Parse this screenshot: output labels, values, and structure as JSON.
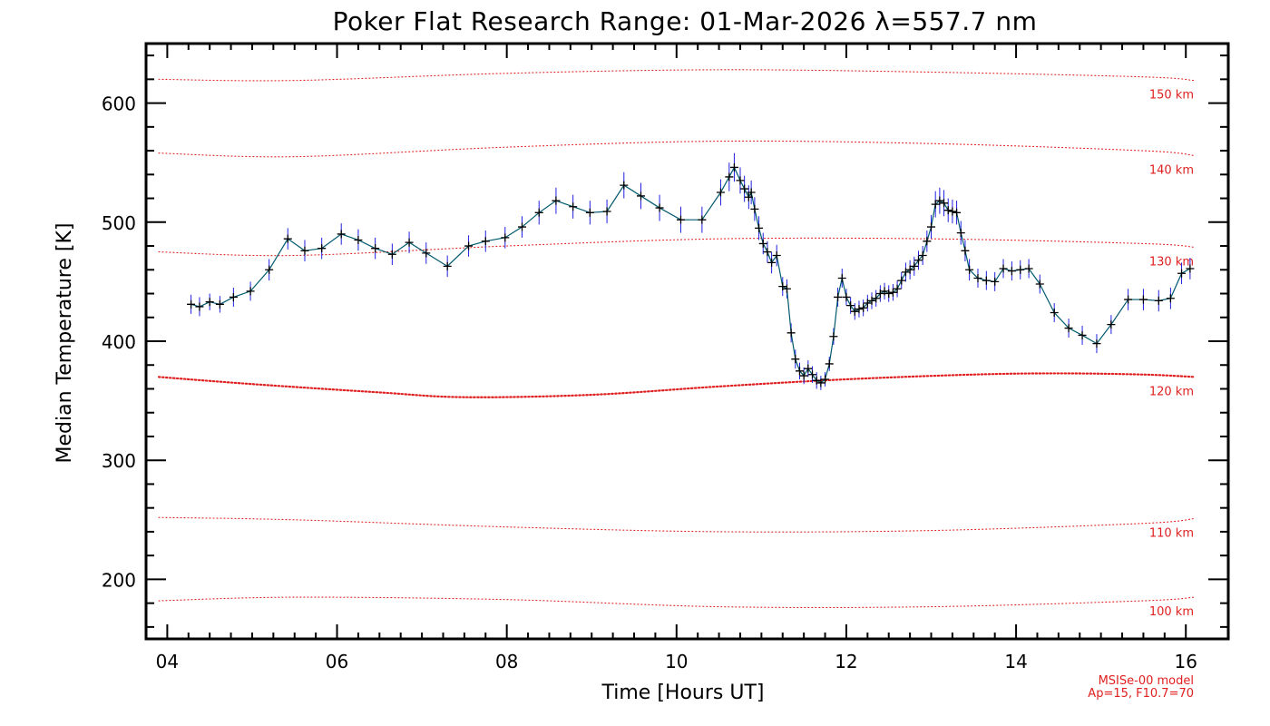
{
  "chart_data": {
    "type": "line",
    "title": "Poker Flat Research Range: 01-Mar-2026 λ=557.7 nm",
    "xlabel": "Time [Hours UT]",
    "ylabel": "Median Temperature [K]",
    "xlim": [
      3.75,
      16.5
    ],
    "ylim": [
      150,
      650
    ],
    "x_ticks": [
      4,
      6,
      8,
      10,
      12,
      14,
      16
    ],
    "x_tick_labels": [
      "04",
      "06",
      "08",
      "10",
      "12",
      "14",
      "16"
    ],
    "y_ticks": [
      200,
      300,
      400,
      500,
      600
    ],
    "y_tick_labels": [
      "200",
      "300",
      "400",
      "500",
      "600"
    ],
    "model_note": [
      "MSISe-00 model",
      "Ap=15, F10.7=70"
    ],
    "model_curves": [
      {
        "label": "150 km",
        "x": [
          3.9,
          5.5,
          8.0,
          10.5,
          13.0,
          15.5,
          16.1
        ],
        "y": [
          620,
          619,
          625,
          628,
          626,
          622,
          619
        ]
      },
      {
        "label": "140 km",
        "x": [
          3.9,
          5.5,
          8.0,
          10.5,
          13.0,
          15.5,
          16.1
        ],
        "y": [
          558,
          555,
          563,
          568,
          566,
          560,
          556
        ]
      },
      {
        "label": "130 km",
        "x": [
          3.9,
          5.5,
          8.0,
          10.5,
          13.0,
          15.5,
          16.1
        ],
        "y": [
          475,
          472,
          480,
          486,
          486,
          482,
          479
        ]
      },
      {
        "label": "120 km",
        "x": [
          3.9,
          5.0,
          6.5,
          7.5,
          9.0,
          10.5,
          12.0,
          13.5,
          14.5,
          15.5,
          16.1
        ],
        "y": [
          370,
          364,
          357,
          353,
          355,
          362,
          368,
          372,
          373,
          372,
          370
        ]
      },
      {
        "label": "110 km",
        "x": [
          3.9,
          5.5,
          8.0,
          10.5,
          13.0,
          15.5,
          16.1
        ],
        "y": [
          252,
          250,
          244,
          240,
          241,
          247,
          251
        ]
      },
      {
        "label": "100 km",
        "x": [
          3.9,
          5.5,
          8.0,
          10.5,
          13.0,
          15.5,
          16.1
        ],
        "y": [
          182,
          185,
          183,
          177,
          177,
          182,
          185
        ]
      }
    ],
    "series": [
      {
        "name": "Median Temperature",
        "points": [
          [
            4.28,
            431,
            8
          ],
          [
            4.38,
            429,
            8
          ],
          [
            4.5,
            433,
            7
          ],
          [
            4.62,
            431,
            7
          ],
          [
            4.78,
            437,
            8
          ],
          [
            4.98,
            442,
            8
          ],
          [
            5.2,
            460,
            9
          ],
          [
            5.42,
            486,
            9
          ],
          [
            5.62,
            476,
            9
          ],
          [
            5.82,
            478,
            9
          ],
          [
            6.05,
            490,
            9
          ],
          [
            6.25,
            485,
            9
          ],
          [
            6.45,
            478,
            9
          ],
          [
            6.65,
            473,
            9
          ],
          [
            6.85,
            483,
            9
          ],
          [
            7.05,
            474,
            9
          ],
          [
            7.3,
            463,
            9
          ],
          [
            7.55,
            480,
            9
          ],
          [
            7.75,
            484,
            9
          ],
          [
            7.98,
            487,
            9
          ],
          [
            8.18,
            496,
            9
          ],
          [
            8.38,
            508,
            10
          ],
          [
            8.58,
            518,
            11
          ],
          [
            8.78,
            513,
            10
          ],
          [
            8.98,
            508,
            10
          ],
          [
            9.18,
            509,
            10
          ],
          [
            9.38,
            531,
            11
          ],
          [
            9.58,
            522,
            11
          ],
          [
            9.8,
            512,
            11
          ],
          [
            10.05,
            502,
            11
          ],
          [
            10.3,
            502,
            11
          ],
          [
            10.52,
            525,
            11
          ],
          [
            10.62,
            538,
            12
          ],
          [
            10.68,
            546,
            12
          ],
          [
            10.75,
            535,
            11
          ],
          [
            10.8,
            528,
            11
          ],
          [
            10.85,
            521,
            10
          ],
          [
            10.88,
            525,
            10
          ],
          [
            10.92,
            511,
            10
          ],
          [
            10.97,
            495,
            10
          ],
          [
            11.02,
            482,
            9
          ],
          [
            11.07,
            475,
            9
          ],
          [
            11.12,
            466,
            9
          ],
          [
            11.18,
            472,
            9
          ],
          [
            11.25,
            446,
            8
          ],
          [
            11.3,
            444,
            8
          ],
          [
            11.35,
            407,
            8
          ],
          [
            11.4,
            385,
            8
          ],
          [
            11.45,
            375,
            7
          ],
          [
            11.5,
            371,
            7
          ],
          [
            11.55,
            377,
            7
          ],
          [
            11.6,
            372,
            7
          ],
          [
            11.65,
            367,
            7
          ],
          [
            11.7,
            365,
            6
          ],
          [
            11.75,
            368,
            6
          ],
          [
            11.8,
            381,
            6
          ],
          [
            11.85,
            404,
            7
          ],
          [
            11.9,
            437,
            8
          ],
          [
            11.95,
            453,
            8
          ],
          [
            12.0,
            437,
            7
          ],
          [
            12.05,
            430,
            7
          ],
          [
            12.1,
            425,
            7
          ],
          [
            12.15,
            427,
            7
          ],
          [
            12.2,
            428,
            7
          ],
          [
            12.25,
            432,
            7
          ],
          [
            12.3,
            434,
            7
          ],
          [
            12.35,
            436,
            7
          ],
          [
            12.4,
            440,
            7
          ],
          [
            12.45,
            442,
            7
          ],
          [
            12.5,
            440,
            7
          ],
          [
            12.55,
            441,
            7
          ],
          [
            12.6,
            444,
            7
          ],
          [
            12.65,
            451,
            7
          ],
          [
            12.7,
            458,
            8
          ],
          [
            12.75,
            460,
            8
          ],
          [
            12.8,
            463,
            8
          ],
          [
            12.85,
            468,
            8
          ],
          [
            12.9,
            472,
            8
          ],
          [
            12.95,
            484,
            9
          ],
          [
            13.0,
            496,
            10
          ],
          [
            13.05,
            515,
            11
          ],
          [
            13.1,
            518,
            11
          ],
          [
            13.15,
            516,
            11
          ],
          [
            13.2,
            510,
            10
          ],
          [
            13.25,
            509,
            10
          ],
          [
            13.3,
            508,
            10
          ],
          [
            13.35,
            491,
            10
          ],
          [
            13.4,
            476,
            9
          ],
          [
            13.45,
            460,
            9
          ],
          [
            13.55,
            453,
            8
          ],
          [
            13.65,
            451,
            8
          ],
          [
            13.75,
            450,
            8
          ],
          [
            13.85,
            461,
            8
          ],
          [
            13.95,
            459,
            8
          ],
          [
            14.05,
            460,
            8
          ],
          [
            14.15,
            461,
            8
          ],
          [
            14.28,
            448,
            8
          ],
          [
            14.45,
            424,
            8
          ],
          [
            14.62,
            411,
            8
          ],
          [
            14.78,
            405,
            8
          ],
          [
            14.95,
            398,
            8
          ],
          [
            15.12,
            414,
            8
          ],
          [
            15.32,
            435,
            9
          ],
          [
            15.5,
            435,
            9
          ],
          [
            15.68,
            434,
            9
          ],
          [
            15.82,
            436,
            9
          ],
          [
            15.95,
            457,
            9
          ],
          [
            16.05,
            461,
            9
          ]
        ]
      }
    ],
    "colors": {
      "data": "#000000",
      "connect": "#005a6e",
      "error": "#2020e0",
      "model": "#e02020"
    }
  }
}
